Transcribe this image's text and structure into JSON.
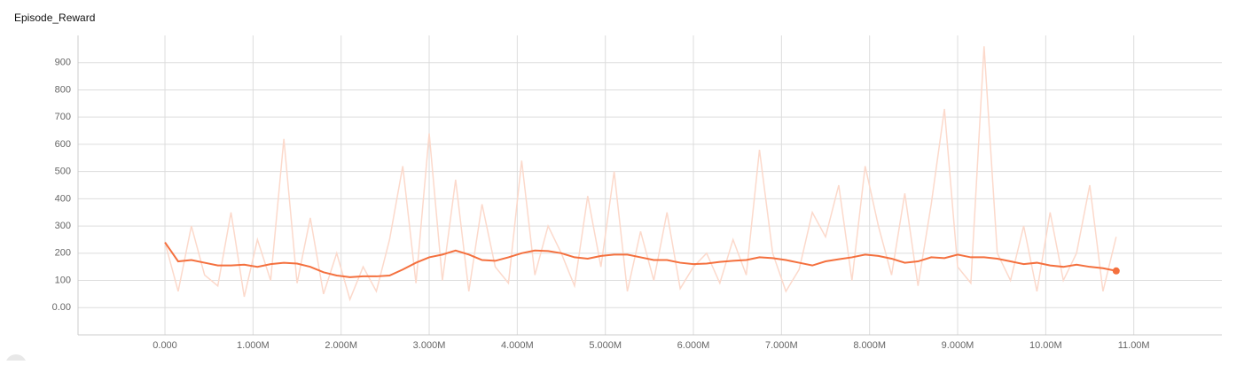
{
  "chart_data": {
    "type": "line",
    "title": "Episode_Reward",
    "x": [
      0,
      150000,
      300000,
      450000,
      600000,
      750000,
      900000,
      1050000,
      1200000,
      1350000,
      1500000,
      1650000,
      1800000,
      1950000,
      2100000,
      2250000,
      2400000,
      2550000,
      2700000,
      2850000,
      3000000,
      3150000,
      3300000,
      3450000,
      3600000,
      3750000,
      3900000,
      4050000,
      4200000,
      4350000,
      4500000,
      4650000,
      4800000,
      4950000,
      5100000,
      5250000,
      5400000,
      5550000,
      5700000,
      5850000,
      6000000,
      6150000,
      6300000,
      6450000,
      6600000,
      6750000,
      6900000,
      7050000,
      7200000,
      7350000,
      7500000,
      7650000,
      7800000,
      7950000,
      8100000,
      8250000,
      8400000,
      8550000,
      8700000,
      8850000,
      9000000,
      9150000,
      9300000,
      9450000,
      9600000,
      9750000,
      9900000,
      10050000,
      10200000,
      10350000,
      10500000,
      10650000,
      10800000
    ],
    "series": [
      {
        "name": "raw",
        "color": "#fcd9cb",
        "values": [
          240,
          60,
          300,
          120,
          80,
          350,
          40,
          250,
          100,
          620,
          90,
          330,
          50,
          200,
          30,
          150,
          60,
          250,
          520,
          90,
          640,
          100,
          470,
          60,
          380,
          150,
          90,
          540,
          120,
          300,
          200,
          80,
          410,
          150,
          500,
          60,
          280,
          100,
          350,
          70,
          150,
          200,
          90,
          250,
          120,
          580,
          200,
          60,
          140,
          350,
          260,
          450,
          100,
          520,
          300,
          120,
          420,
          80,
          380,
          730,
          150,
          90,
          960,
          200,
          100,
          300,
          60,
          350,
          100,
          200,
          450,
          60,
          260
        ]
      },
      {
        "name": "smoothed",
        "color": "#f4703e",
        "values": [
          240,
          170,
          175,
          165,
          155,
          155,
          158,
          150,
          160,
          165,
          162,
          150,
          130,
          118,
          112,
          115,
          115,
          118,
          140,
          165,
          185,
          195,
          210,
          195,
          175,
          172,
          185,
          200,
          210,
          208,
          200,
          185,
          180,
          190,
          195,
          195,
          185,
          175,
          175,
          165,
          160,
          162,
          168,
          172,
          175,
          185,
          182,
          175,
          165,
          155,
          170,
          178,
          185,
          195,
          190,
          180,
          165,
          170,
          185,
          182,
          195,
          185,
          185,
          180,
          170,
          160,
          165,
          155,
          150,
          158,
          150,
          145,
          135
        ]
      }
    ],
    "xlim": [
      -987000,
      12000000
    ],
    "xticks": [
      {
        "value": 0,
        "label": "0.000"
      },
      {
        "value": 1000000,
        "label": "1.000M"
      },
      {
        "value": 2000000,
        "label": "2.000M"
      },
      {
        "value": 3000000,
        "label": "3.000M"
      },
      {
        "value": 4000000,
        "label": "4.000M"
      },
      {
        "value": 5000000,
        "label": "5.000M"
      },
      {
        "value": 6000000,
        "label": "6.000M"
      },
      {
        "value": 7000000,
        "label": "7.000M"
      },
      {
        "value": 8000000,
        "label": "8.000M"
      },
      {
        "value": 9000000,
        "label": "9.000M"
      },
      {
        "value": 10000000,
        "label": "10.00M"
      },
      {
        "value": 11000000,
        "label": "11.00M"
      }
    ],
    "ylim": [
      -100,
      1000
    ],
    "yticks": [
      {
        "value": 0,
        "label": "0.00"
      },
      100,
      200,
      300,
      400,
      500,
      600,
      700,
      800,
      900
    ],
    "grid": true
  }
}
